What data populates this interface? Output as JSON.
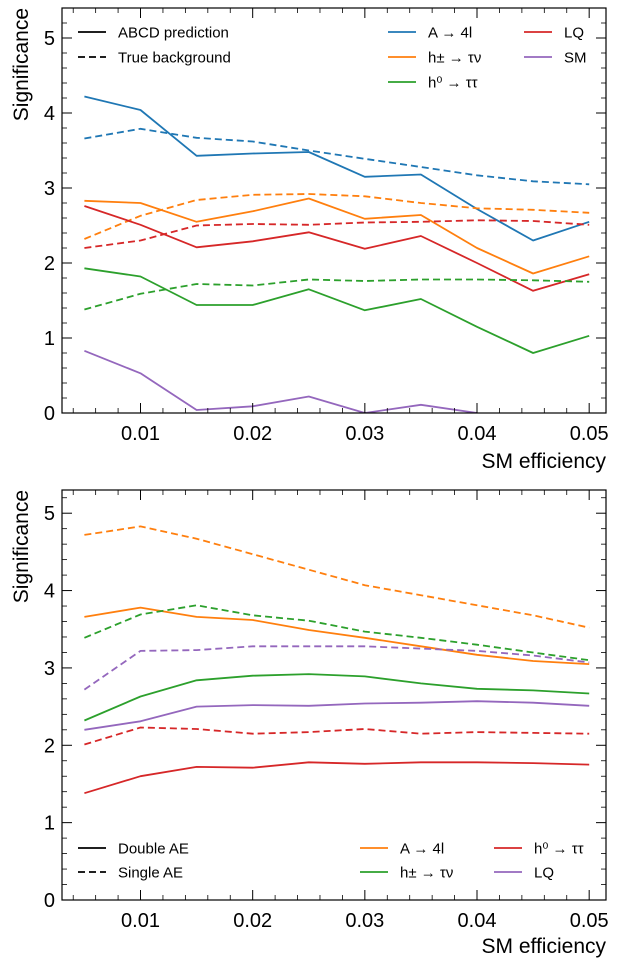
{
  "chart_data": [
    {
      "type": "line",
      "xlabel": "SM efficiency",
      "ylabel": "Significance",
      "xlim": [
        0.003,
        0.0515
      ],
      "ylim": [
        0,
        5.4
      ],
      "xticks": [
        0.01,
        0.02,
        0.03,
        0.04,
        0.05
      ],
      "xtick_labels": [
        "0.01",
        "0.02",
        "0.03",
        "0.04",
        "0.05"
      ],
      "yticks": [
        0,
        1,
        2,
        3,
        4,
        5
      ],
      "ytick_labels": [
        "0",
        "1",
        "2",
        "3",
        "4",
        "5"
      ],
      "grid": false,
      "legend_placement": "top",
      "style_legend": [
        {
          "label": "ABCD prediction",
          "dash": "solid"
        },
        {
          "label": "True background",
          "dash": "dashed"
        }
      ],
      "color_legend": [
        {
          "label": "A → 4l",
          "color": "#1f77b4"
        },
        {
          "label": "LQ",
          "color": "#d62728"
        },
        {
          "label": "h± → τν",
          "color": "#ff7f0e"
        },
        {
          "label": "SM",
          "color": "#9467bd"
        },
        {
          "label": "h⁰ → ττ",
          "color": "#2ca02c"
        }
      ],
      "x": [
        0.005,
        0.01,
        0.015,
        0.02,
        0.025,
        0.03,
        0.035,
        0.04,
        0.045,
        0.05
      ],
      "series": [
        {
          "color": "#1f77b4",
          "dash": "solid",
          "values": [
            4.22,
            4.04,
            3.43,
            3.46,
            3.48,
            3.15,
            3.18,
            2.72,
            2.3,
            2.55
          ]
        },
        {
          "color": "#1f77b4",
          "dash": "dashed",
          "values": [
            3.66,
            3.79,
            3.67,
            3.62,
            3.5,
            3.39,
            3.28,
            3.17,
            3.09,
            3.05
          ]
        },
        {
          "color": "#ff7f0e",
          "dash": "solid",
          "values": [
            2.83,
            2.8,
            2.55,
            2.69,
            2.86,
            2.59,
            2.64,
            2.2,
            1.86,
            2.09
          ]
        },
        {
          "color": "#ff7f0e",
          "dash": "dashed",
          "values": [
            2.32,
            2.63,
            2.84,
            2.91,
            2.92,
            2.89,
            2.8,
            2.73,
            2.71,
            2.67
          ]
        },
        {
          "color": "#d62728",
          "dash": "solid",
          "values": [
            2.76,
            2.51,
            2.21,
            2.29,
            2.41,
            2.19,
            2.36,
            2.0,
            1.63,
            1.85
          ]
        },
        {
          "color": "#d62728",
          "dash": "dashed",
          "values": [
            2.2,
            2.3,
            2.5,
            2.52,
            2.51,
            2.54,
            2.55,
            2.57,
            2.56,
            2.51
          ]
        },
        {
          "color": "#2ca02c",
          "dash": "solid",
          "values": [
            1.93,
            1.82,
            1.44,
            1.44,
            1.65,
            1.37,
            1.52,
            1.15,
            0.8,
            1.03
          ]
        },
        {
          "color": "#2ca02c",
          "dash": "dashed",
          "values": [
            1.38,
            1.59,
            1.72,
            1.7,
            1.78,
            1.76,
            1.78,
            1.78,
            1.77,
            1.75
          ]
        },
        {
          "color": "#9467bd",
          "dash": "solid",
          "values": [
            0.83,
            0.53,
            0.04,
            0.09,
            0.22,
            0.0,
            0.11,
            0.0,
            null,
            null
          ]
        }
      ]
    },
    {
      "type": "line",
      "xlabel": "SM efficiency",
      "ylabel": "Significance",
      "xlim": [
        0.003,
        0.0515
      ],
      "ylim": [
        0,
        5.3
      ],
      "xticks": [
        0.01,
        0.02,
        0.03,
        0.04,
        0.05
      ],
      "xtick_labels": [
        "0.01",
        "0.02",
        "0.03",
        "0.04",
        "0.05"
      ],
      "yticks": [
        0,
        1,
        2,
        3,
        4,
        5
      ],
      "ytick_labels": [
        "0",
        "1",
        "2",
        "3",
        "4",
        "5"
      ],
      "grid": false,
      "legend_placement": "bottom",
      "style_legend": [
        {
          "label": "Double AE",
          "dash": "solid"
        },
        {
          "label": "Single AE",
          "dash": "dashed"
        }
      ],
      "color_legend": [
        {
          "label": "A → 4l",
          "color": "#ff7f0e"
        },
        {
          "label": "h⁰ → ττ",
          "color": "#d62728"
        },
        {
          "label": "h± → τν",
          "color": "#2ca02c"
        },
        {
          "label": "LQ",
          "color": "#9467bd"
        }
      ],
      "x": [
        0.005,
        0.01,
        0.015,
        0.02,
        0.025,
        0.03,
        0.035,
        0.04,
        0.045,
        0.05
      ],
      "series": [
        {
          "color": "#ff7f0e",
          "dash": "dashed",
          "values": [
            4.72,
            4.83,
            4.67,
            4.47,
            4.27,
            4.07,
            3.94,
            3.81,
            3.68,
            3.52
          ]
        },
        {
          "color": "#ff7f0e",
          "dash": "solid",
          "values": [
            3.66,
            3.78,
            3.66,
            3.62,
            3.49,
            3.39,
            3.28,
            3.17,
            3.09,
            3.05
          ]
        },
        {
          "color": "#2ca02c",
          "dash": "dashed",
          "values": [
            3.39,
            3.69,
            3.81,
            3.68,
            3.61,
            3.47,
            3.39,
            3.3,
            3.2,
            3.1
          ]
        },
        {
          "color": "#9467bd",
          "dash": "dashed",
          "values": [
            2.72,
            3.22,
            3.23,
            3.28,
            3.28,
            3.28,
            3.25,
            3.22,
            3.16,
            3.07
          ]
        },
        {
          "color": "#2ca02c",
          "dash": "solid",
          "values": [
            2.32,
            2.63,
            2.84,
            2.9,
            2.92,
            2.89,
            2.8,
            2.73,
            2.71,
            2.67
          ]
        },
        {
          "color": "#9467bd",
          "dash": "solid",
          "values": [
            2.2,
            2.31,
            2.5,
            2.52,
            2.51,
            2.54,
            2.55,
            2.57,
            2.55,
            2.51
          ]
        },
        {
          "color": "#d62728",
          "dash": "dashed",
          "values": [
            2.01,
            2.23,
            2.21,
            2.15,
            2.17,
            2.21,
            2.15,
            2.17,
            2.16,
            2.15
          ]
        },
        {
          "color": "#d62728",
          "dash": "solid",
          "values": [
            1.38,
            1.6,
            1.72,
            1.71,
            1.78,
            1.76,
            1.78,
            1.78,
            1.77,
            1.75
          ]
        }
      ]
    }
  ]
}
